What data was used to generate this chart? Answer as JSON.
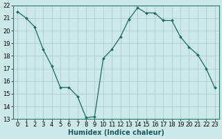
{
  "x": [
    0,
    1,
    2,
    3,
    4,
    5,
    6,
    7,
    8,
    9,
    10,
    11,
    12,
    13,
    14,
    15,
    16,
    17,
    18,
    19,
    20,
    21,
    22,
    23
  ],
  "y": [
    21.5,
    21.0,
    20.3,
    18.5,
    17.2,
    15.5,
    15.5,
    14.8,
    13.1,
    13.2,
    17.8,
    18.5,
    19.5,
    20.9,
    21.8,
    21.4,
    21.4,
    20.8,
    20.8,
    19.5,
    18.7,
    18.1,
    17.0,
    15.5
  ],
  "line_color": "#1a6b5a",
  "marker": "D",
  "marker_size": 2.0,
  "bg_color": "#cce8e8",
  "grid_color": "#b0cccc",
  "xlabel": "Humidex (Indice chaleur)",
  "ylabel": "",
  "xlim": [
    -0.5,
    23.5
  ],
  "ylim": [
    13,
    22
  ],
  "xticks": [
    0,
    1,
    2,
    3,
    4,
    5,
    6,
    7,
    8,
    9,
    10,
    11,
    12,
    13,
    14,
    15,
    16,
    17,
    18,
    19,
    20,
    21,
    22,
    23
  ],
  "yticks": [
    13,
    14,
    15,
    16,
    17,
    18,
    19,
    20,
    21,
    22
  ],
  "tick_fontsize": 6.0,
  "xlabel_fontsize": 7.0
}
